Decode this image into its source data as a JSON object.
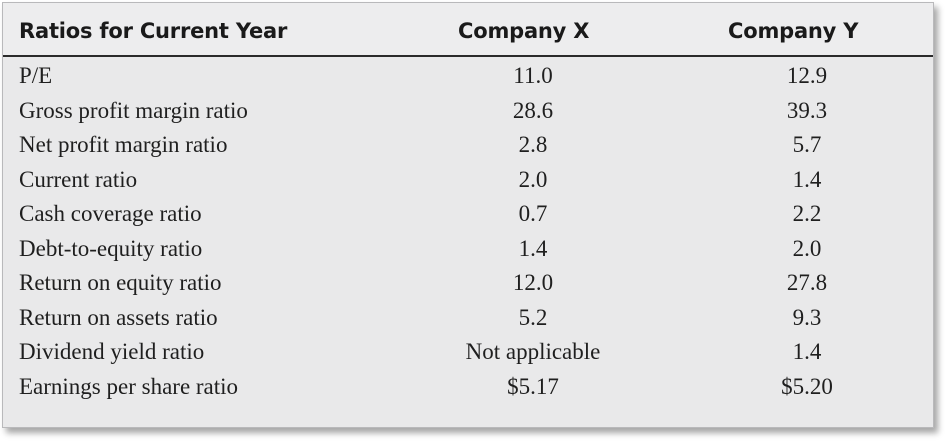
{
  "table": {
    "headers": {
      "label": "Ratios for Current Year",
      "company_x": "Company X",
      "company_y": "Company Y"
    },
    "rows": [
      {
        "label": "P/E",
        "x": "11.0",
        "y": "12.9"
      },
      {
        "label": "Gross profit margin ratio",
        "x": "28.6",
        "y": "39.3"
      },
      {
        "label": "Net profit margin ratio",
        "x": "2.8",
        "y": "5.7"
      },
      {
        "label": "Current ratio",
        "x": "2.0",
        "y": "1.4"
      },
      {
        "label": "Cash coverage ratio",
        "x": "0.7",
        "y": "2.2"
      },
      {
        "label": "Debt-to-equity ratio",
        "x": "1.4",
        "y": "2.0"
      },
      {
        "label": "Return on equity ratio",
        "x": "12.0",
        "y": "27.8"
      },
      {
        "label": "Return on assets ratio",
        "x": "5.2",
        "y": "9.3"
      },
      {
        "label": "Dividend yield ratio",
        "x": "Not applicable",
        "y": "1.4"
      },
      {
        "label": "Earnings per share ratio",
        "x": "$5.17",
        "y": "$5.20"
      }
    ]
  }
}
